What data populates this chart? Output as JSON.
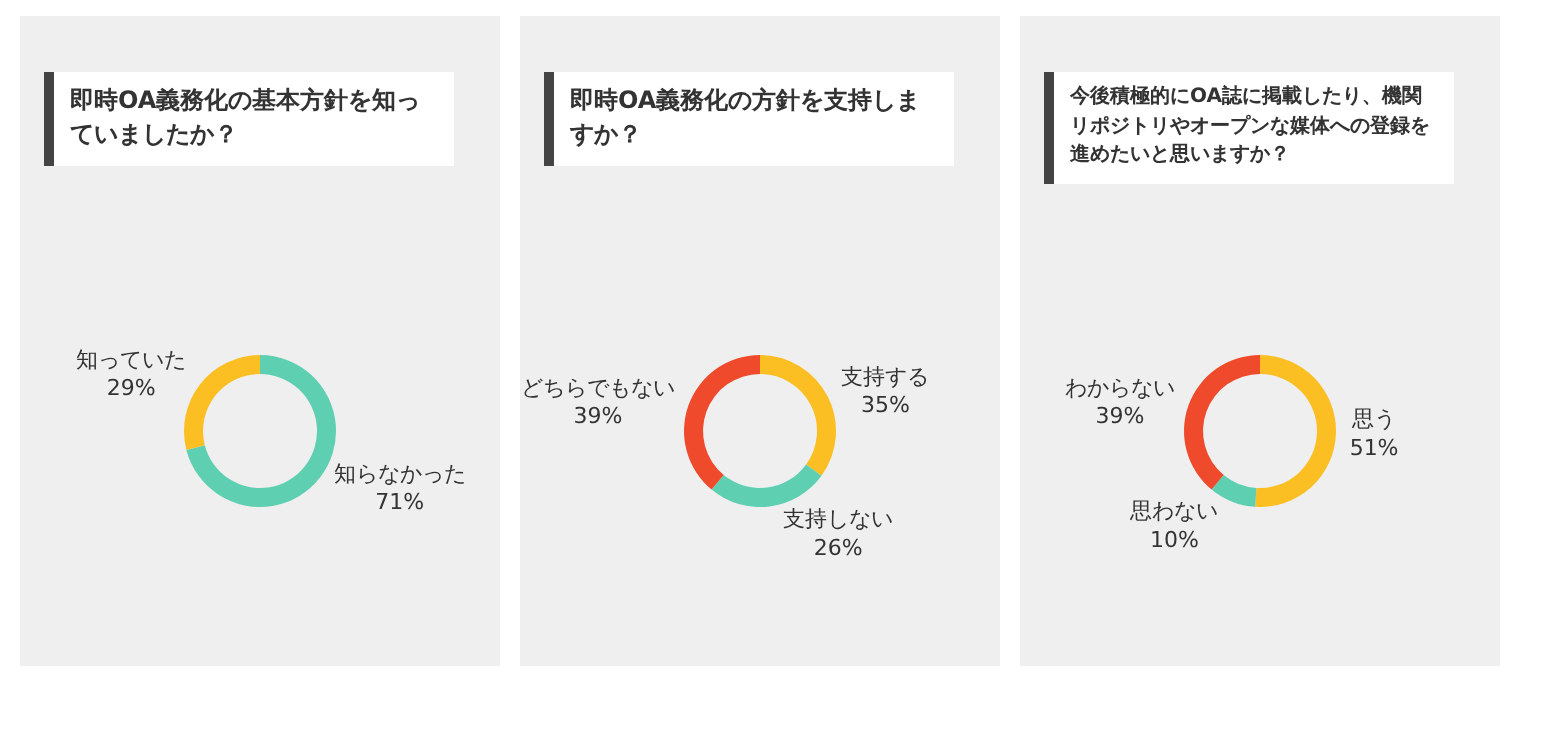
{
  "chart_data": [
    {
      "type": "donut",
      "title": "即時OA義務化の基本方針を知っていましたか？",
      "categories": [
        "知らなかった",
        "知っていた"
      ],
      "values": [
        71,
        29
      ],
      "value_labels": [
        "71%",
        "29%"
      ],
      "colors": [
        "#5ecfb1",
        "#fbbf24"
      ]
    },
    {
      "type": "donut",
      "title": "即時OA義務化の方針を支持しますか？",
      "categories": [
        "支持する",
        "支持しない",
        "どちらでもない"
      ],
      "values": [
        35,
        26,
        39
      ],
      "value_labels": [
        "35%",
        "26%",
        "39%"
      ],
      "colors": [
        "#fbbf24",
        "#5ecfb1",
        "#ef4a2b"
      ]
    },
    {
      "type": "donut",
      "title": "今後積極的にOA誌に掲載したり、機関リポジトリやオープンな媒体への登録を進めたいと思いますか？",
      "categories": [
        "思う",
        "思わない",
        "わからない"
      ],
      "values": [
        51,
        10,
        39
      ],
      "value_labels": [
        "51%",
        "10%",
        "39%"
      ],
      "colors": [
        "#fbbf24",
        "#5ecfb1",
        "#ef4a2b"
      ]
    }
  ]
}
